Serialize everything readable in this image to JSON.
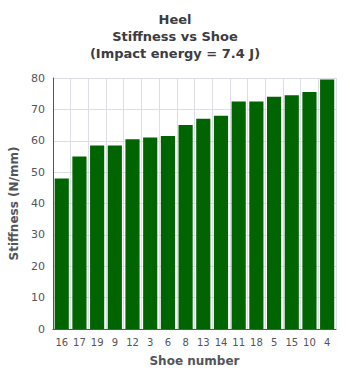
{
  "chart_data": {
    "type": "bar",
    "title": "Heel\nStiffness vs Shoe\n(Impact energy = 7.4 J)",
    "x_label": "Shoe number",
    "y_label": "Stiffness (N/mm)",
    "categories": [
      "16",
      "17",
      "19",
      "9",
      "12",
      "3",
      "6",
      "8",
      "13",
      "14",
      "11",
      "18",
      "5",
      "15",
      "10",
      "4"
    ],
    "values": [
      48,
      55,
      58.5,
      58.5,
      60.5,
      61,
      61.5,
      65,
      67,
      68,
      72.5,
      72.5,
      74,
      74.5,
      75.5,
      79.5
    ],
    "color": "#006400",
    "ylim": [
      0,
      80
    ],
    "yticks": [
      0,
      10,
      20,
      30,
      40,
      50,
      60,
      70,
      80
    ],
    "grid": true
  }
}
